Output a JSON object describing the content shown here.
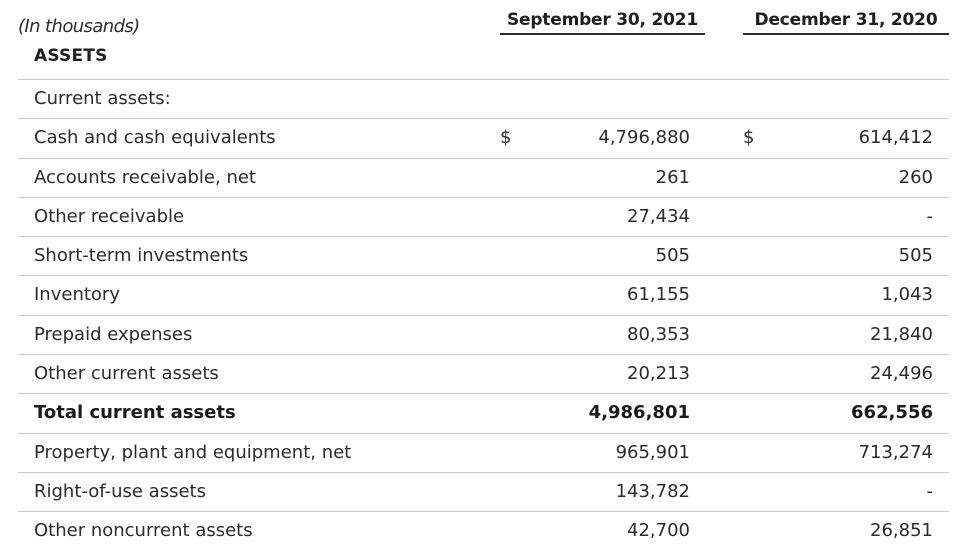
{
  "header": {
    "units_note": "(In thousands)",
    "col1": "September 30, 2021",
    "col2": "December 31, 2020"
  },
  "section": "ASSETS",
  "rows": [
    {
      "label": "Current assets:",
      "cur1": "",
      "v1": "",
      "cur2": "",
      "v2": ""
    },
    {
      "label": "Cash and cash equivalents",
      "cur1": "$",
      "v1": "4,796,880",
      "cur2": "$",
      "v2": "614,412"
    },
    {
      "label": "Accounts receivable, net",
      "cur1": "",
      "v1": "261",
      "cur2": "",
      "v2": "260"
    },
    {
      "label": "Other receivable",
      "cur1": "",
      "v1": "27,434",
      "cur2": "",
      "v2": "-"
    },
    {
      "label": "Short-term investments",
      "cur1": "",
      "v1": "505",
      "cur2": "",
      "v2": "505"
    },
    {
      "label": "Inventory",
      "cur1": "",
      "v1": "61,155",
      "cur2": "",
      "v2": "1,043"
    },
    {
      "label": "Prepaid expenses",
      "cur1": "",
      "v1": "80,353",
      "cur2": "",
      "v2": "21,840"
    },
    {
      "label": "Other current assets",
      "cur1": "",
      "v1": "20,213",
      "cur2": "",
      "v2": "24,496"
    },
    {
      "label": "Total current assets",
      "cur1": "",
      "v1": "4,986,801",
      "cur2": "",
      "v2": "662,556"
    },
    {
      "label": "Property, plant and equipment, net",
      "cur1": "",
      "v1": "965,901",
      "cur2": "",
      "v2": "713,274"
    },
    {
      "label": "Right-of-use assets",
      "cur1": "",
      "v1": "143,782",
      "cur2": "",
      "v2": "-"
    },
    {
      "label": "Other noncurrent assets",
      "cur1": "",
      "v1": "42,700",
      "cur2": "",
      "v2": "26,851"
    }
  ]
}
